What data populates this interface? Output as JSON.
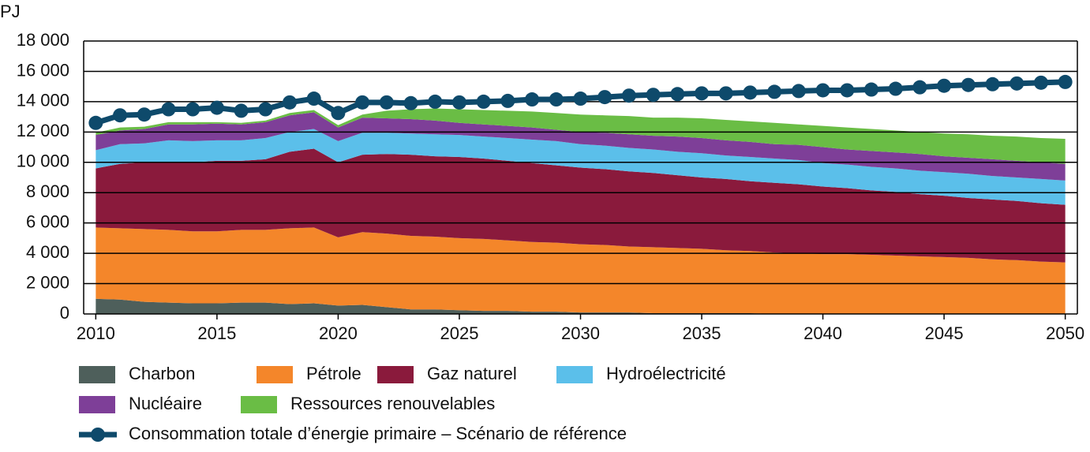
{
  "chart_data": {
    "type": "stacked_area",
    "ylabel": "PJ",
    "x": [
      2010,
      2011,
      2012,
      2013,
      2014,
      2015,
      2016,
      2017,
      2018,
      2019,
      2020,
      2021,
      2022,
      2023,
      2024,
      2025,
      2026,
      2027,
      2028,
      2029,
      2030,
      2031,
      2032,
      2033,
      2034,
      2035,
      2036,
      2037,
      2038,
      2039,
      2040,
      2041,
      2042,
      2043,
      2044,
      2045,
      2046,
      2047,
      2048,
      2049,
      2050
    ],
    "xlim": [
      2009.5,
      2050.5
    ],
    "xticks": [
      2010,
      2015,
      2020,
      2025,
      2030,
      2035,
      2040,
      2045,
      2050
    ],
    "ylim": [
      0,
      18000
    ],
    "yticks": [
      0,
      {
        "value": 2000,
        "label": "2 000"
      },
      {
        "value": 4000,
        "label": "4 000"
      },
      {
        "value": 6000,
        "label": "6 000"
      },
      {
        "value": 8000,
        "label": "8 000"
      },
      {
        "value": 10000,
        "label": "10 000"
      },
      {
        "value": 12000,
        "label": "12 000"
      },
      {
        "value": 14000,
        "label": "14 000"
      },
      {
        "value": 16000,
        "label": "16 000"
      },
      {
        "value": 18000,
        "label": "18 000"
      }
    ],
    "grid": true,
    "series": [
      {
        "name": "Charbon",
        "color": "#4e5f5b",
        "values": [
          1000,
          950,
          800,
          750,
          700,
          700,
          750,
          750,
          650,
          700,
          550,
          600,
          450,
          300,
          300,
          250,
          200,
          200,
          150,
          150,
          100,
          100,
          100,
          50,
          50,
          50,
          50,
          50,
          0,
          0,
          0,
          0,
          0,
          0,
          0,
          0,
          0,
          0,
          0,
          0,
          0
        ]
      },
      {
        "name": "Pétrole",
        "color": "#f4862a",
        "values": [
          4700,
          4700,
          4800,
          4800,
          4750,
          4750,
          4800,
          4800,
          5000,
          5000,
          4500,
          4800,
          4850,
          4850,
          4800,
          4750,
          4750,
          4650,
          4600,
          4550,
          4500,
          4450,
          4350,
          4350,
          4300,
          4250,
          4150,
          4100,
          4050,
          4000,
          3950,
          3950,
          3900,
          3850,
          3800,
          3750,
          3700,
          3600,
          3550,
          3450,
          3400
        ]
      },
      {
        "name": "Gaz naturel",
        "color": "#8a1a3c",
        "values": [
          3900,
          4250,
          4400,
          4450,
          4550,
          4650,
          4550,
          4650,
          5050,
          5200,
          4950,
          5100,
          5250,
          5350,
          5300,
          5350,
          5300,
          5250,
          5200,
          5100,
          5050,
          5000,
          4950,
          4900,
          4800,
          4700,
          4700,
          4600,
          4600,
          4550,
          4450,
          4350,
          4250,
          4200,
          4100,
          4050,
          3950,
          3950,
          3900,
          3850,
          3800
        ]
      },
      {
        "name": "Hydroélectricité",
        "color": "#5bbfea",
        "values": [
          1200,
          1300,
          1250,
          1450,
          1400,
          1350,
          1350,
          1400,
          1300,
          1300,
          1400,
          1450,
          1400,
          1400,
          1450,
          1450,
          1450,
          1500,
          1550,
          1600,
          1550,
          1550,
          1550,
          1550,
          1550,
          1600,
          1550,
          1600,
          1600,
          1600,
          1550,
          1550,
          1550,
          1550,
          1550,
          1550,
          1600,
          1550,
          1550,
          1600,
          1600
        ]
      },
      {
        "name": "Nucléaire",
        "color": "#7e3f98",
        "values": [
          1000,
          900,
          950,
          1050,
          1100,
          1100,
          1050,
          1050,
          1100,
          1100,
          900,
          1000,
          950,
          950,
          900,
          800,
          800,
          800,
          800,
          750,
          800,
          850,
          900,
          900,
          1000,
          1000,
          1000,
          1000,
          950,
          1000,
          1050,
          1000,
          1050,
          1050,
          1100,
          1050,
          1050,
          1100,
          1100,
          1100,
          1100
        ]
      },
      {
        "name": "Ressources renouvelables",
        "color": "#6abd45",
        "values": [
          150,
          200,
          150,
          150,
          150,
          100,
          100,
          100,
          150,
          150,
          150,
          200,
          500,
          650,
          800,
          900,
          950,
          1000,
          1050,
          1100,
          1150,
          1150,
          1200,
          1200,
          1250,
          1300,
          1350,
          1350,
          1400,
          1350,
          1400,
          1450,
          1450,
          1450,
          1450,
          1500,
          1550,
          1550,
          1600,
          1600,
          1650
        ]
      }
    ],
    "line": {
      "name": "Consommation totale d’énergie primaire – Scénario de référence",
      "color": "#0e4a6b",
      "values": [
        12600,
        13100,
        13150,
        13500,
        13500,
        13600,
        13400,
        13500,
        13950,
        14200,
        13250,
        13950,
        13950,
        13900,
        14000,
        13950,
        14000,
        14050,
        14150,
        14150,
        14200,
        14300,
        14400,
        14450,
        14500,
        14550,
        14550,
        14600,
        14650,
        14700,
        14750,
        14750,
        14800,
        14850,
        14950,
        15050,
        15100,
        15150,
        15200,
        15250,
        15300
      ]
    }
  }
}
